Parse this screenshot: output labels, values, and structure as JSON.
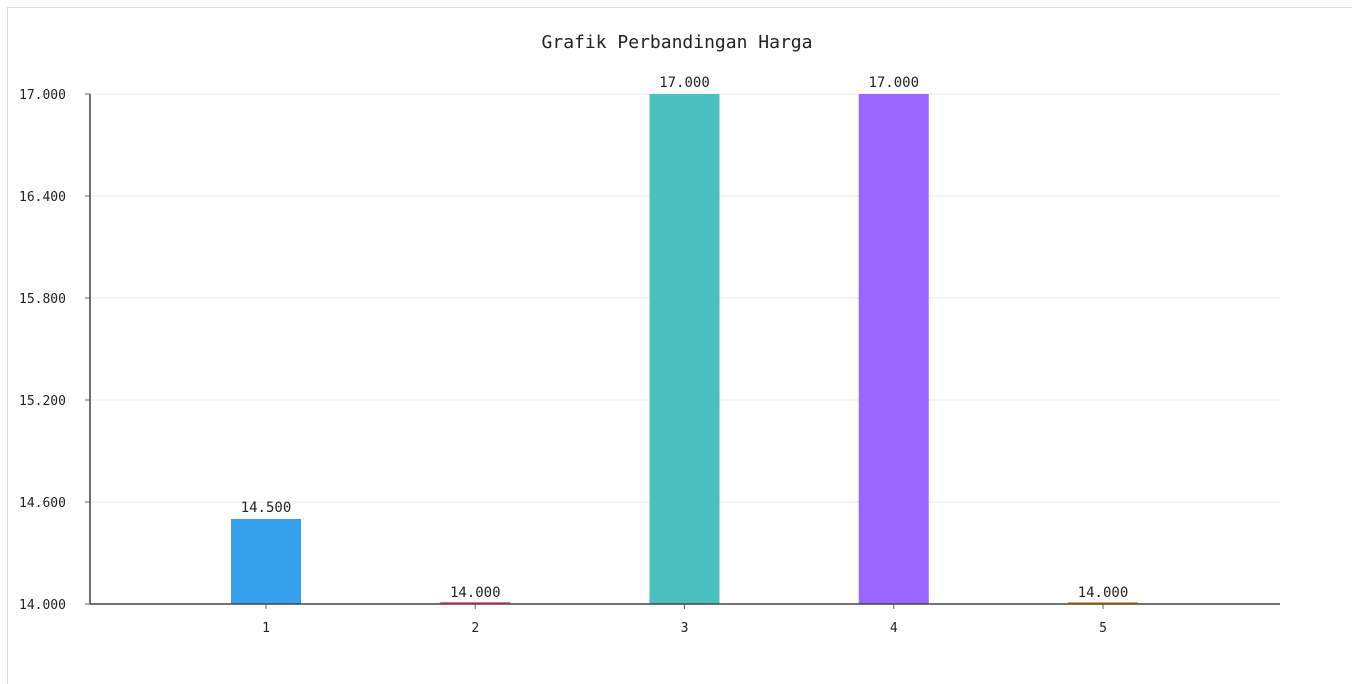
{
  "chart_data": {
    "type": "bar",
    "title": "Grafik Perbandingan Harga",
    "xlabel": "",
    "ylabel": "",
    "categories": [
      "1",
      "2",
      "3",
      "4",
      "5"
    ],
    "values": [
      14500,
      14000,
      17000,
      17000,
      14000
    ],
    "value_labels": [
      "14.500",
      "14.000",
      "17.000",
      "17.000",
      "14.000"
    ],
    "ylim": [
      14000,
      17000
    ],
    "yticks": [
      14000,
      14600,
      15200,
      15800,
      16400,
      17000
    ],
    "ytick_labels": [
      "14.000",
      "14.600",
      "15.200",
      "15.800",
      "16.400",
      "17.000"
    ],
    "colors": [
      "#36a2eb",
      "#ff6384",
      "#4bc0c0",
      "#9966ff",
      "#ff9f40"
    ],
    "grid": true,
    "legend": "none"
  }
}
